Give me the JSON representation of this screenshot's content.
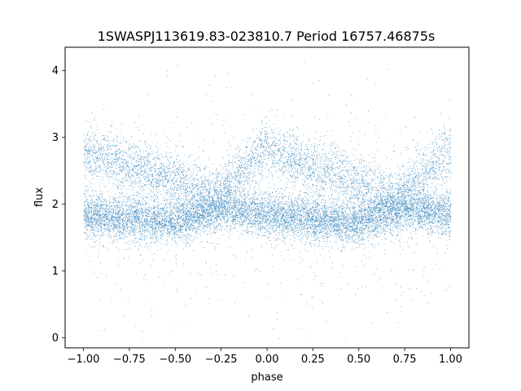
{
  "chart_data": {
    "type": "scatter",
    "title": "1SWASPJ113619.83-023810.7 Period 16757.46875s",
    "xlabel": "phase",
    "ylabel": "flux",
    "xlim": [
      -1.1,
      1.1
    ],
    "ylim": [
      -0.15,
      4.35
    ],
    "x_ticks": [
      -1.0,
      -0.75,
      -0.5,
      -0.25,
      0.0,
      0.25,
      0.5,
      0.75,
      1.0
    ],
    "x_tick_labels": [
      "−1.00",
      "−0.75",
      "−0.50",
      "−0.25",
      "0.00",
      "0.25",
      "0.50",
      "0.75",
      "1.00"
    ],
    "y_ticks": [
      0,
      1,
      2,
      3,
      4
    ],
    "y_tick_labels": [
      "0",
      "1",
      "2",
      "3",
      "4"
    ],
    "grid": false,
    "legend": "none",
    "point_color": "#1f77b4",
    "series": [
      {
        "x_range": [
          -1.0,
          1.0
        ],
        "lower_band": {
          "description_points": [
            {
              "x": -1.0,
              "y": 1.82
            },
            {
              "x": -0.75,
              "y": 1.8
            },
            {
              "x": -0.5,
              "y": 1.72
            },
            {
              "x": -0.25,
              "y": 1.95
            },
            {
              "x": 0.0,
              "y": 1.85
            },
            {
              "x": 0.25,
              "y": 1.78
            },
            {
              "x": 0.5,
              "y": 1.72
            },
            {
              "x": 0.75,
              "y": 1.95
            },
            {
              "x": 1.0,
              "y": 1.85
            }
          ]
        },
        "upper_band": {
          "description_points": [
            {
              "x": -1.0,
              "y": 2.78
            },
            {
              "x": -0.75,
              "y": 2.6
            },
            {
              "x": -0.5,
              "y": 2.35
            },
            {
              "x": -0.3,
              "y": 2.1
            },
            {
              "x": 0.0,
              "y": 2.85
            },
            {
              "x": 0.25,
              "y": 2.55
            },
            {
              "x": 0.5,
              "y": 2.3
            },
            {
              "x": 0.7,
              "y": 2.1
            },
            {
              "x": 1.0,
              "y": 2.8
            }
          ]
        }
      }
    ]
  }
}
